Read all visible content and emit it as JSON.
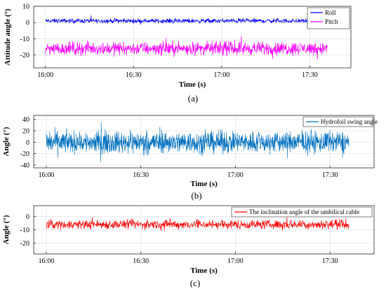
{
  "figure": {
    "captions": [
      "(a)",
      "(b)",
      "(c)"
    ]
  },
  "chart_data": [
    {
      "type": "line",
      "xlabel": "Time (s)",
      "ylabel": "Attitude angle (°)",
      "x_ticks": [
        "16:00",
        "16:30",
        "17:00",
        "17:30"
      ],
      "x_tick_minutes": [
        0,
        30,
        60,
        90
      ],
      "xlim_minutes": [
        -4,
        104
      ],
      "ylim": [
        -28,
        10
      ],
      "y_ticks": [
        10,
        0,
        -10,
        -20
      ],
      "grid": true,
      "legend_position": "top-right",
      "series": [
        {
          "name": "Roll",
          "color": "#0000ff",
          "mean": 1,
          "amplitude": 2,
          "start_minute": 0,
          "end_minute": 95
        },
        {
          "name": "Pitch",
          "color": "#ff00ff",
          "mean": -16,
          "amplitude": 6,
          "start_minute": 0,
          "end_minute": 96
        }
      ]
    },
    {
      "type": "line",
      "xlabel": "Time (s)",
      "ylabel": "Angle (°)",
      "x_ticks": [
        "16:00",
        "16:30",
        "17:00",
        "17:30"
      ],
      "x_tick_minutes": [
        0,
        30,
        60,
        90
      ],
      "xlim_minutes": [
        -4,
        104
      ],
      "ylim": [
        -45,
        47
      ],
      "y_ticks": [
        40,
        20,
        0,
        -20,
        -40
      ],
      "grid": true,
      "legend_position": "top-right",
      "series": [
        {
          "name": "Hydrofoil swing angle",
          "color": "#0070c0",
          "mean": 0,
          "amplitude": 28,
          "start_minute": 0,
          "end_minute": 96
        }
      ]
    },
    {
      "type": "line",
      "xlabel": "Time (s)",
      "ylabel": "Angle (°)",
      "x_ticks": [
        "16:00",
        "16:30",
        "17:00",
        "17:30"
      ],
      "x_tick_minutes": [
        0,
        30,
        60,
        90
      ],
      "xlim_minutes": [
        -4,
        104
      ],
      "ylim": [
        -28,
        8
      ],
      "y_ticks": [
        0,
        -10,
        -20
      ],
      "grid": true,
      "legend_position": "top-right",
      "series": [
        {
          "name": "The inclination angle of the umbilical cable",
          "color": "#ff0000",
          "mean": -6,
          "amplitude": 5,
          "start_minute": 0,
          "end_minute": 96
        }
      ]
    }
  ]
}
